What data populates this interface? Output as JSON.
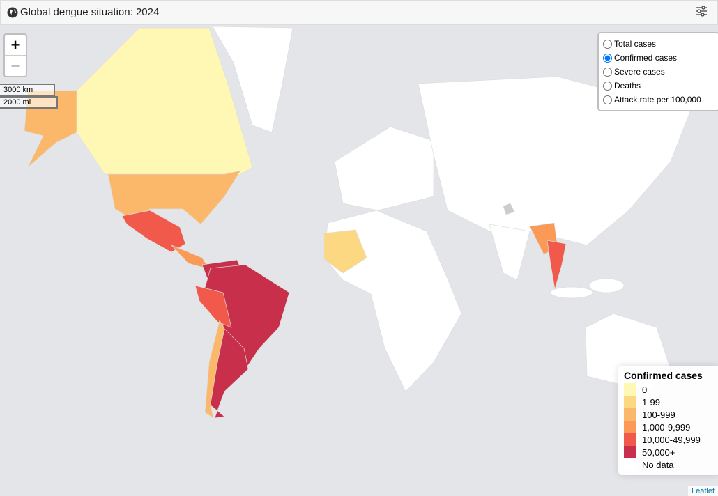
{
  "header": {
    "title": "Global dengue situation: 2024"
  },
  "map": {
    "zoom_in": "+",
    "zoom_out": "−",
    "scale": [
      "3000 km",
      "2000 mi"
    ],
    "layers": [
      {
        "label": "Total cases",
        "checked": false
      },
      {
        "label": "Confirmed cases",
        "checked": true
      },
      {
        "label": "Severe cases",
        "checked": false
      },
      {
        "label": "Deaths",
        "checked": false
      },
      {
        "label": "Attack rate per 100,000",
        "checked": false
      }
    ],
    "legend": {
      "title": "Confirmed cases",
      "items": [
        {
          "label": "0",
          "color": "#fff8b4"
        },
        {
          "label": "1-99",
          "color": "#fdd882"
        },
        {
          "label": "100-999",
          "color": "#fcb86a"
        },
        {
          "label": "1,000-9,999",
          "color": "#fb9956"
        },
        {
          "label": "10,000-49,999",
          "color": "#f15a4a"
        },
        {
          "label": "50,000+",
          "color": "#c82f4a"
        },
        {
          "label": "No data",
          "color": "#ffffff"
        }
      ]
    },
    "attribution": "Leaflet"
  }
}
